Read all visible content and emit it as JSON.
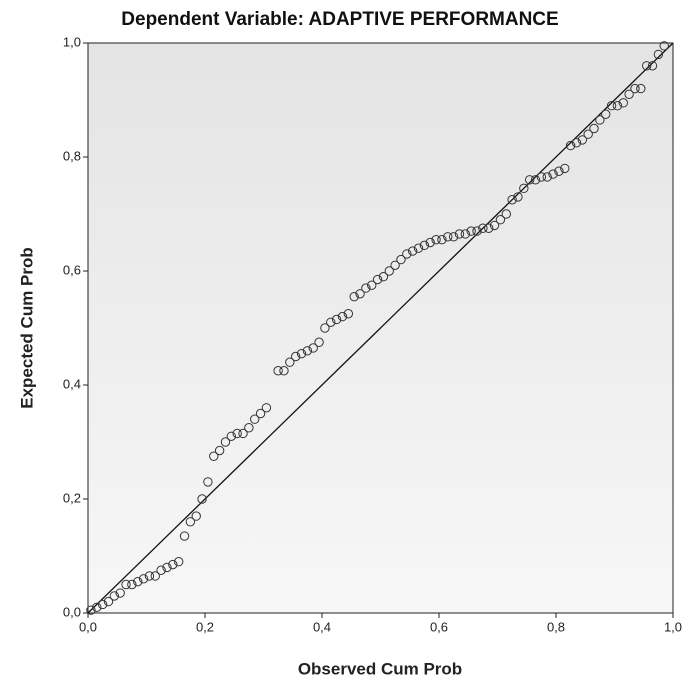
{
  "chart_data": {
    "type": "scatter",
    "title": "Dependent Variable: ADAPTIVE PERFORMANCE",
    "xlabel": "Observed Cum Prob",
    "ylabel": "Expected Cum Prob",
    "xlim": [
      0,
      1
    ],
    "ylim": [
      0,
      1
    ],
    "xticks": [
      {
        "value": 0,
        "label": "0,0"
      },
      {
        "value": 0.2,
        "label": "0,2"
      },
      {
        "value": 0.4,
        "label": "0,4"
      },
      {
        "value": 0.6,
        "label": "0,6"
      },
      {
        "value": 0.8,
        "label": "0,8"
      },
      {
        "value": 1,
        "label": "1,0"
      }
    ],
    "yticks": [
      {
        "value": 0,
        "label": "0,0"
      },
      {
        "value": 0.2,
        "label": "0,2"
      },
      {
        "value": 0.4,
        "label": "0,4"
      },
      {
        "value": 0.6,
        "label": "0,6"
      },
      {
        "value": 0.8,
        "label": "0,8"
      },
      {
        "value": 1,
        "label": "1,0"
      }
    ],
    "color": "#333333",
    "x": [
      0.005,
      0.015,
      0.025,
      0.035,
      0.045,
      0.055,
      0.065,
      0.075,
      0.085,
      0.095,
      0.105,
      0.115,
      0.125,
      0.135,
      0.145,
      0.155,
      0.165,
      0.175,
      0.185,
      0.195,
      0.205,
      0.215,
      0.225,
      0.235,
      0.245,
      0.255,
      0.265,
      0.275,
      0.285,
      0.295,
      0.305,
      0.325,
      0.335,
      0.345,
      0.355,
      0.365,
      0.375,
      0.385,
      0.395,
      0.405,
      0.415,
      0.425,
      0.435,
      0.445,
      0.455,
      0.465,
      0.475,
      0.485,
      0.495,
      0.505,
      0.515,
      0.525,
      0.535,
      0.545,
      0.555,
      0.565,
      0.575,
      0.585,
      0.595,
      0.605,
      0.615,
      0.625,
      0.635,
      0.645,
      0.655,
      0.665,
      0.675,
      0.685,
      0.695,
      0.705,
      0.715,
      0.725,
      0.735,
      0.745,
      0.755,
      0.765,
      0.775,
      0.785,
      0.795,
      0.805,
      0.815,
      0.825,
      0.835,
      0.845,
      0.855,
      0.865,
      0.875,
      0.885,
      0.895,
      0.905,
      0.915,
      0.925,
      0.935,
      0.945,
      0.955,
      0.965,
      0.975,
      0.985
    ],
    "values": [
      0.005,
      0.01,
      0.015,
      0.02,
      0.03,
      0.035,
      0.05,
      0.05,
      0.055,
      0.06,
      0.065,
      0.065,
      0.075,
      0.08,
      0.085,
      0.09,
      0.135,
      0.16,
      0.17,
      0.2,
      0.23,
      0.275,
      0.285,
      0.3,
      0.31,
      0.315,
      0.315,
      0.325,
      0.34,
      0.35,
      0.36,
      0.425,
      0.425,
      0.44,
      0.45,
      0.455,
      0.46,
      0.465,
      0.475,
      0.5,
      0.51,
      0.515,
      0.52,
      0.525,
      0.555,
      0.56,
      0.57,
      0.575,
      0.585,
      0.59,
      0.6,
      0.61,
      0.62,
      0.63,
      0.635,
      0.64,
      0.645,
      0.65,
      0.655,
      0.655,
      0.66,
      0.66,
      0.665,
      0.665,
      0.67,
      0.67,
      0.675,
      0.675,
      0.68,
      0.69,
      0.7,
      0.725,
      0.73,
      0.745,
      0.76,
      0.76,
      0.765,
      0.765,
      0.77,
      0.775,
      0.78,
      0.82,
      0.825,
      0.83,
      0.84,
      0.85,
      0.865,
      0.875,
      0.89,
      0.89,
      0.895,
      0.91,
      0.92,
      0.92,
      0.96,
      0.96,
      0.98,
      0.995
    ]
  }
}
